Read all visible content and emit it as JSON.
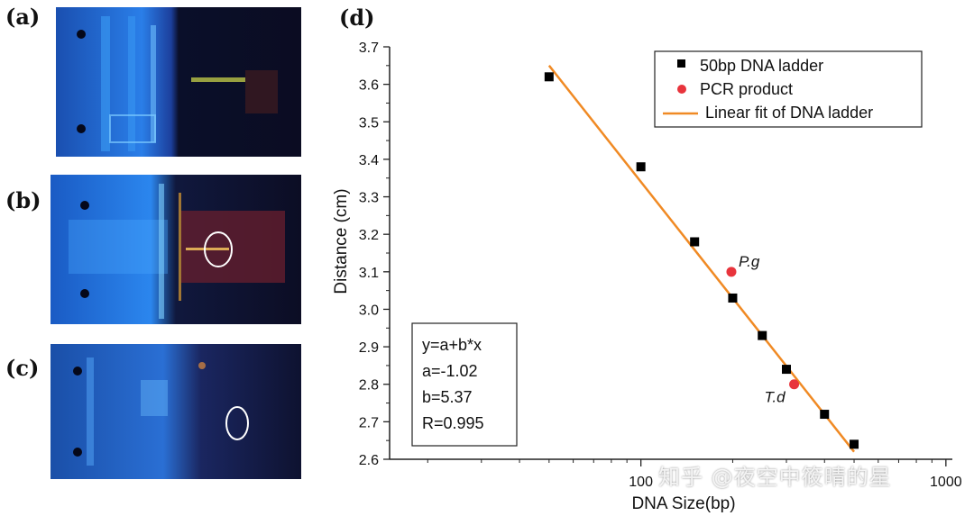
{
  "panels": {
    "a": "(a)",
    "b": "(b)",
    "c": "(c)",
    "d": "(d)"
  },
  "colors": {
    "photo_bg": "#0b1030",
    "photo_blue": "#1e6fd6",
    "ladder": "#000000",
    "pcr": "#e8343c",
    "fit": "#f08a24"
  },
  "chart_data": {
    "type": "scatter",
    "xscale": "log",
    "xlabel": "DNA Size(bp)",
    "ylabel": "Distance (cm)",
    "xlim": [
      15,
      1050
    ],
    "ylim": [
      2.6,
      3.7
    ],
    "xticks": [
      100,
      1000
    ],
    "xtick_labels": [
      "100",
      "1000"
    ],
    "yticks": [
      2.6,
      2.7,
      2.8,
      2.9,
      3.0,
      3.1,
      3.2,
      3.3,
      3.4,
      3.5,
      3.6,
      3.7
    ],
    "ytick_labels": [
      "2.6",
      "2.7",
      "2.8",
      "2.9",
      "3.0",
      "3.1",
      "3.2",
      "3.3",
      "3.4",
      "3.5",
      "3.6",
      "3.7"
    ],
    "series": [
      {
        "name": "50bp DNA ladder",
        "marker": "square",
        "x": [
          50,
          100,
          150,
          200,
          250,
          300,
          400,
          500
        ],
        "y": [
          3.62,
          3.38,
          3.18,
          3.03,
          2.93,
          2.84,
          2.72,
          2.64
        ]
      },
      {
        "name": "PCR product",
        "marker": "circle",
        "x": [
          198,
          318
        ],
        "y": [
          3.1,
          2.8
        ],
        "labels": [
          "P.g",
          "T.d"
        ]
      },
      {
        "name": "Linear fit of DNA ladder",
        "marker": "line",
        "x": [
          50,
          500
        ],
        "y": [
          3.65,
          2.62
        ]
      }
    ],
    "legend_position": "top-right",
    "equation_box": [
      "y=a+b*x",
      "a=-1.02",
      "b=5.37",
      "R=0.995"
    ]
  },
  "watermark": "知乎 @夜空中筱晴的星"
}
